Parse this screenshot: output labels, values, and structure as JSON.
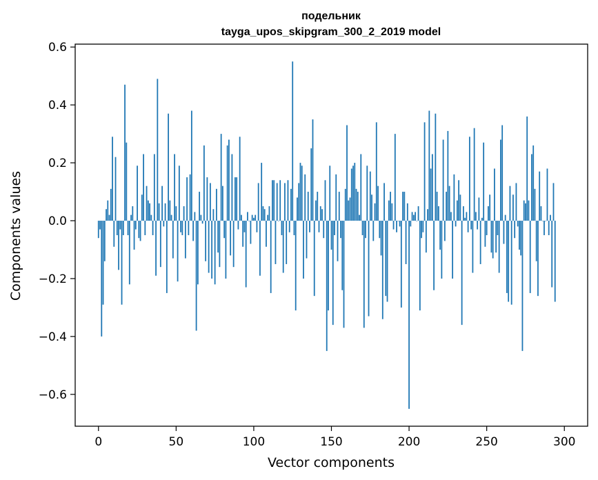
{
  "chart_data": {
    "type": "bar",
    "title_line1": "подельник",
    "title_line2": "tayga_upos_skipgram_300_2_2019 model",
    "xlabel": "Vector components",
    "ylabel": "Components values",
    "xlim": [
      -15,
      315
    ],
    "ylim": [
      -0.71,
      0.61
    ],
    "xticks": [
      0,
      50,
      100,
      150,
      200,
      250,
      300
    ],
    "xtick_labels": [
      "0",
      "50",
      "100",
      "150",
      "200",
      "250",
      "300"
    ],
    "yticks": [
      -0.6,
      -0.4,
      -0.2,
      0.0,
      0.2,
      0.4,
      0.6
    ],
    "ytick_labels": [
      "−0.6",
      "−0.4",
      "−0.2",
      "0.0",
      "0.2",
      "0.4",
      "0.6"
    ],
    "bar_color": "#1f77b4",
    "values": [
      -0.06,
      -0.03,
      -0.4,
      -0.29,
      -0.14,
      0.04,
      0.07,
      0.02,
      0.11,
      0.29,
      -0.09,
      0.22,
      -0.05,
      -0.17,
      -0.03,
      -0.29,
      -0.05,
      0.47,
      0.27,
      -0.05,
      -0.22,
      0.02,
      0.05,
      -0.1,
      -0.03,
      0.19,
      -0.06,
      -0.07,
      0.09,
      0.23,
      -0.05,
      0.12,
      0.07,
      0.06,
      0.02,
      -0.05,
      0.23,
      -0.19,
      0.49,
      0.06,
      -0.16,
      0.12,
      -0.02,
      0.06,
      -0.25,
      0.37,
      0.07,
      0.02,
      -0.13,
      0.23,
      0.05,
      -0.21,
      0.19,
      -0.04,
      -0.05,
      0.05,
      -0.13,
      0.15,
      -0.05,
      0.16,
      0.38,
      -0.07,
      0.03,
      -0.38,
      -0.22,
      0.1,
      0.02,
      -0.01,
      0.26,
      -0.14,
      0.15,
      -0.18,
      0.13,
      -0.2,
      0.04,
      -0.22,
      0.11,
      -0.11,
      -0.16,
      0.3,
      0.12,
      -0.06,
      -0.2,
      0.26,
      0.28,
      -0.12,
      0.23,
      -0.16,
      0.15,
      0.15,
      -0.03,
      0.29,
      0.02,
      -0.09,
      -0.04,
      -0.23,
      0.03,
      0.0,
      -0.08,
      0.02,
      0.01,
      0.02,
      -0.04,
      0.13,
      -0.19,
      0.2,
      0.05,
      0.04,
      -0.09,
      0.02,
      0.05,
      -0.25,
      0.14,
      0.14,
      -0.15,
      0.13,
      0.0,
      0.14,
      -0.05,
      -0.18,
      0.13,
      -0.15,
      0.14,
      -0.04,
      0.11,
      0.55,
      -0.05,
      -0.31,
      0.08,
      0.13,
      0.2,
      0.19,
      -0.2,
      0.16,
      -0.13,
      0.1,
      -0.04,
      0.25,
      0.35,
      -0.26,
      0.07,
      0.1,
      -0.04,
      0.05,
      0.04,
      -0.06,
      0.14,
      -0.45,
      -0.31,
      0.19,
      -0.1,
      -0.36,
      -0.05,
      0.16,
      -0.14,
      0.1,
      -0.06,
      -0.24,
      -0.37,
      0.11,
      0.33,
      0.07,
      0.08,
      0.18,
      0.19,
      0.2,
      0.11,
      0.1,
      0.02,
      0.23,
      -0.05,
      -0.37,
      -0.06,
      0.19,
      -0.33,
      0.17,
      0.09,
      -0.07,
      0.06,
      0.34,
      0.12,
      -0.06,
      -0.12,
      -0.34,
      0.13,
      -0.26,
      -0.28,
      0.07,
      0.1,
      0.06,
      -0.03,
      0.3,
      -0.04,
      0.0,
      -0.02,
      -0.3,
      0.1,
      0.1,
      -0.15,
      0.06,
      -0.65,
      -0.02,
      0.03,
      0.02,
      0.03,
      0.0,
      0.05,
      -0.31,
      -0.06,
      -0.04,
      0.34,
      -0.11,
      0.04,
      0.38,
      0.18,
      0.23,
      -0.24,
      0.37,
      0.1,
      0.05,
      -0.1,
      -0.2,
      0.28,
      -0.07,
      0.1,
      0.31,
      0.12,
      0.03,
      -0.2,
      0.16,
      -0.02,
      0.07,
      0.14,
      0.09,
      -0.36,
      0.05,
      0.01,
      0.03,
      -0.04,
      0.29,
      -0.03,
      -0.18,
      0.32,
      0.03,
      -0.03,
      0.08,
      -0.15,
      0.01,
      0.27,
      -0.09,
      -0.05,
      0.05,
      0.09,
      -0.11,
      -0.13,
      0.18,
      -0.11,
      -0.05,
      -0.18,
      0.28,
      0.33,
      -0.08,
      0.02,
      -0.25,
      -0.28,
      0.12,
      -0.29,
      0.09,
      -0.06,
      0.13,
      -0.02,
      -0.1,
      -0.12,
      -0.45,
      0.07,
      0.06,
      0.36,
      0.07,
      -0.25,
      0.23,
      0.26,
      0.11,
      -0.14,
      -0.26,
      0.17,
      0.05,
      0.0,
      -0.05,
      0.0,
      0.18,
      -0.05,
      0.02,
      -0.23,
      0.13,
      -0.28
    ]
  }
}
